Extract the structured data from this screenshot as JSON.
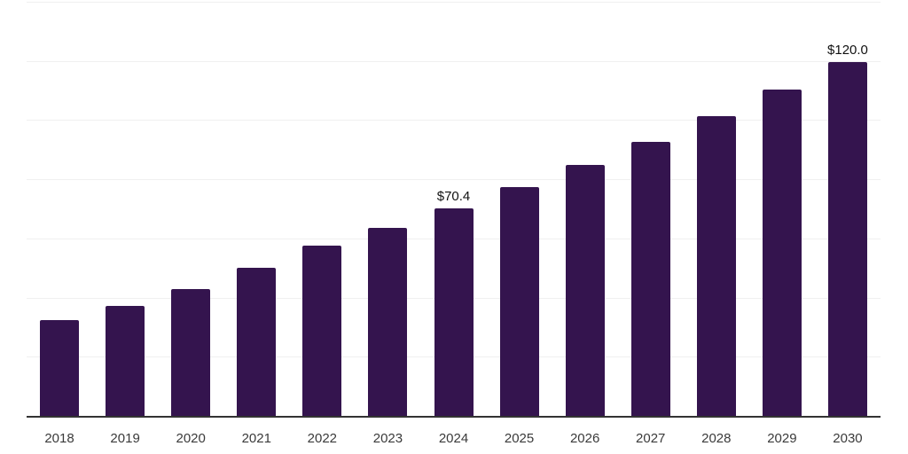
{
  "chart_data": {
    "type": "bar",
    "title": "",
    "xlabel": "",
    "ylabel": "",
    "categories": [
      "2018",
      "2019",
      "2020",
      "2021",
      "2022",
      "2023",
      "2024",
      "2025",
      "2026",
      "2027",
      "2028",
      "2029",
      "2030"
    ],
    "values": [
      32.8,
      37.6,
      43.1,
      50.3,
      57.9,
      63.9,
      70.4,
      77.6,
      85.2,
      92.9,
      101.7,
      110.7,
      120.0
    ],
    "data_labels": [
      "",
      "",
      "",
      "",
      "",
      "",
      "$70.4",
      "",
      "",
      "",
      "",
      "",
      "$120.0"
    ],
    "ylim": [
      0,
      140
    ],
    "grid": true,
    "grid_step": 20,
    "legend": false,
    "y_axis_labels_visible": false,
    "bar_color": "#34144e",
    "grid_color": "#f0f0f0",
    "axis_color": "#333333",
    "tick_label_color": "#3a3a3a",
    "data_label_color": "#111111"
  }
}
